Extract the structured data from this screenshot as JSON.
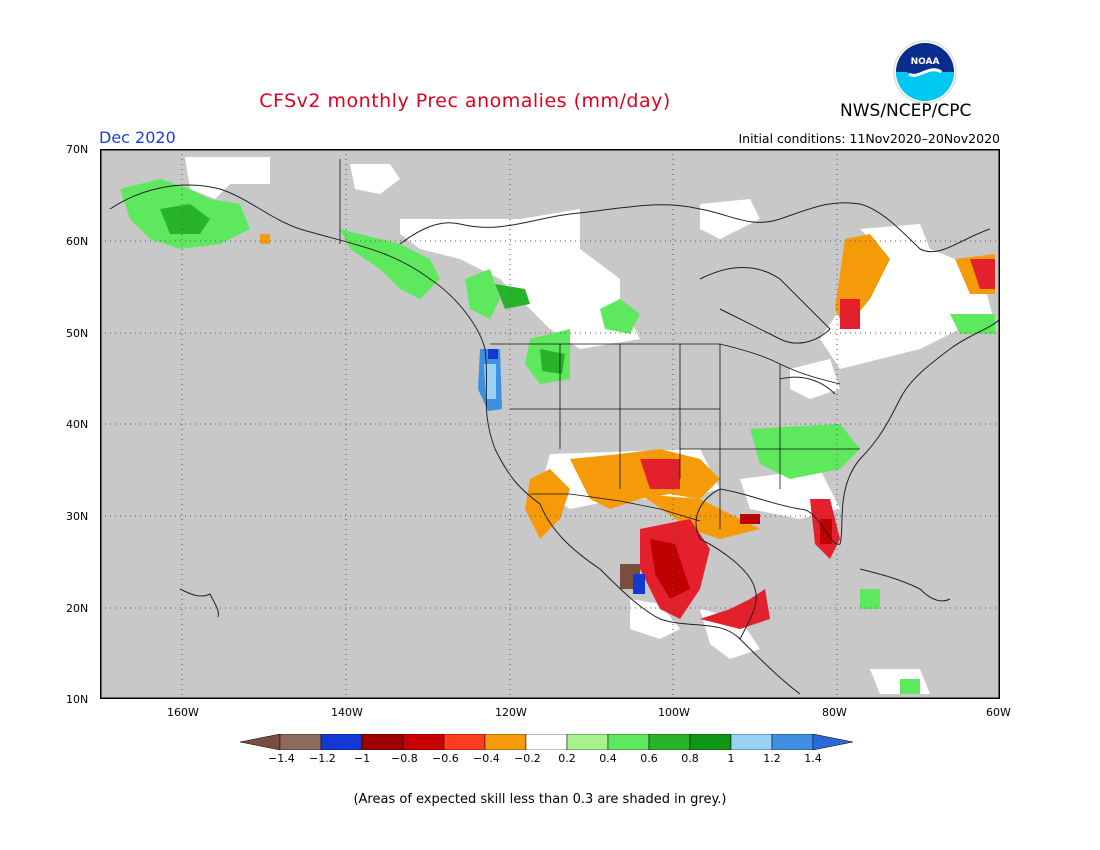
{
  "header": {
    "title": "CFSv2 monthly Prec anomalies (mm/day)",
    "target_month": "Dec 2020",
    "initial_conditions": "Initial conditions: 11Nov2020–20Nov2020",
    "agency": "NWS/NCEP/CPC",
    "logo_text": "NOAA"
  },
  "map": {
    "region": "North America",
    "latitude_labels": [
      "70N",
      "60N",
      "50N",
      "40N",
      "30N",
      "20N",
      "10N"
    ],
    "longitude_labels": [
      "160W",
      "140W",
      "120W",
      "100W",
      "80W",
      "60W"
    ],
    "background_color": "#c8c8c8",
    "anomaly_areas": [
      {
        "area": "Alaska",
        "category": "0.2 to 0.6",
        "color": "#5ee85e"
      },
      {
        "area": "Pacific Northwest coast",
        "category": "1.2 to 1.4",
        "color": "#3f8fe3"
      },
      {
        "area": "Western Canada",
        "category": "-0.2 to 0.2",
        "color": "#ffffff"
      },
      {
        "area": "Ohio Valley",
        "category": "0.2 to 0.6",
        "color": "#5ee85e"
      },
      {
        "area": "Southwest US / Texas",
        "category": "-0.6 to -0.2",
        "color": "#f59b0a"
      },
      {
        "area": "Mexico / Gulf coast",
        "category": "-1 to -0.4",
        "color": "#c00000"
      },
      {
        "area": "Florida",
        "category": "-0.8 to -0.4",
        "color": "#e4202c"
      },
      {
        "area": "Eastern Canada",
        "category": "-0.6 to -0.2",
        "color": "#f59b0a"
      }
    ]
  },
  "colorbar": {
    "tick_labels": [
      "-1.4",
      "-1.2",
      "-1",
      "-0.8",
      "-0.6",
      "-0.4",
      "-0.2",
      "0.2",
      "0.4",
      "0.6",
      "0.8",
      "1",
      "1.2",
      "1.4"
    ],
    "colors": [
      "#7a4e3e",
      "#8c6a60",
      "#1438d4",
      "#a00000",
      "#c80000",
      "#ff3c1e",
      "#f59b0a",
      "#ffffff",
      "#a6f28c",
      "#5ee85e",
      "#28b428",
      "#0f9614",
      "#9ad2f5",
      "#3f8fe3",
      "#2a6ad8"
    ]
  },
  "footnote": "(Areas of expected skill less than 0.3 are shaded in grey.)"
}
